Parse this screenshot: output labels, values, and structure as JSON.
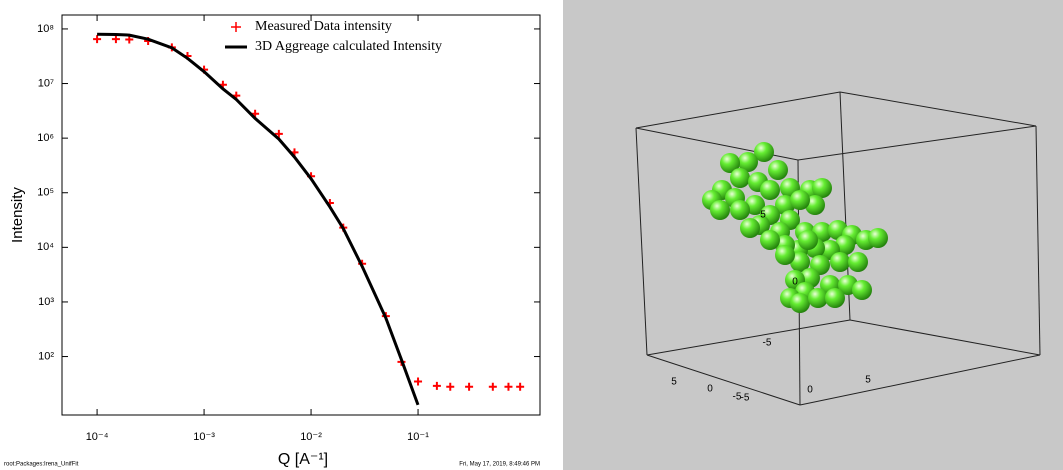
{
  "chart_data": {
    "type": "scatter-line",
    "xlabel": "Q [A⁻¹]",
    "ylabel": "Intensity",
    "footnote_left": "root:Packages:Irena_UnifFit",
    "footnote_right": "Fri, May 17, 2019, 8:49:46 PM",
    "xscale": "log",
    "yscale": "log",
    "grid": false,
    "legend": "top-right",
    "xlim": [
      4.7e-05,
      1.38
    ],
    "ylim": [
      8.5,
      180000000
    ],
    "xticks": [
      {
        "value": 0.0001,
        "label": "10⁻⁴"
      },
      {
        "value": 0.001,
        "label": "10⁻³"
      },
      {
        "value": 0.01,
        "label": "10⁻²"
      },
      {
        "value": 0.1,
        "label": "10⁻¹"
      }
    ],
    "yticks": [
      {
        "value": 100,
        "label": "10²"
      },
      {
        "value": 1000,
        "label": "10³"
      },
      {
        "value": 10000,
        "label": "10⁴"
      },
      {
        "value": 100000,
        "label": "10⁵"
      },
      {
        "value": 1000000,
        "label": "10⁶"
      },
      {
        "value": 10000000,
        "label": "10⁷"
      },
      {
        "value": 100000000,
        "label": "10⁸"
      }
    ],
    "x": [
      0.0001,
      0.00015,
      0.0002,
      0.0003,
      0.0005,
      0.0007,
      0.001,
      0.0015,
      0.002,
      0.003,
      0.005,
      0.007,
      0.01,
      0.015,
      0.02,
      0.03,
      0.05,
      0.07,
      0.1,
      0.15,
      0.2,
      0.3,
      0.5,
      0.7,
      0.9
    ],
    "series": [
      {
        "name": "Measured Data intensity",
        "color": "#ff0000",
        "marker": "+",
        "values": [
          65000000,
          65000000,
          64000000,
          60000000,
          46000000,
          32000000,
          18000000,
          9500000,
          6000000,
          2800000,
          1200000,
          550000,
          200000,
          65000,
          23000,
          5000,
          550,
          80,
          35,
          29,
          28,
          28,
          28,
          28,
          28
        ]
      },
      {
        "name": "3D Aggreage calculated Intensity",
        "color": "#000000",
        "marker": "line",
        "values": [
          80000000,
          79000000,
          77000000,
          65000000,
          45000000,
          29000000,
          16500000,
          8000000,
          5100000,
          2300000,
          960000,
          450000,
          180000,
          55000,
          22000,
          4500,
          510,
          87,
          13,
          null,
          null,
          null,
          null,
          null,
          null
        ]
      }
    ]
  },
  "scene": {
    "tick_labels": [
      "5",
      "0",
      "-5",
      "-5",
      "0",
      "5",
      "5",
      "0",
      "-5"
    ]
  }
}
